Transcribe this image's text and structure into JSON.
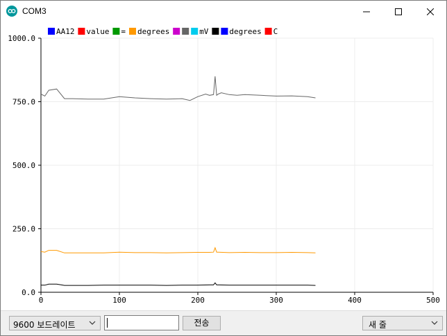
{
  "window": {
    "title": "COM3"
  },
  "plotter": {
    "legend": [
      "AA12",
      "value",
      "=",
      "degrees",
      "",
      "mV",
      "degrees",
      "C"
    ],
    "legend_colors": [
      "#0000ff",
      "#ff0000",
      "#009900",
      "#ff9900",
      "#cc00cc",
      "#666666",
      "#00ccee",
      "#000000",
      "#0000ff",
      "#ff0000"
    ]
  },
  "bottom": {
    "baud": "9600 보드레이트",
    "send_label": "전송",
    "line_ending": "새 줄"
  },
  "chart_data": {
    "type": "line",
    "xlim": [
      0,
      500
    ],
    "ylim": [
      0,
      1000
    ],
    "x_ticks": [
      "0",
      "100",
      "200",
      "300",
      "400",
      "500"
    ],
    "y_ticks": [
      "0.0",
      "250.0",
      "500.0",
      "750.0",
      "1000.0"
    ],
    "grid": true,
    "legend_position": "top",
    "series": [
      {
        "name": "mV",
        "color": "#666666",
        "x": [
          0,
          5,
          10,
          20,
          30,
          40,
          60,
          80,
          100,
          120,
          140,
          160,
          180,
          190,
          200,
          210,
          215,
          220,
          222,
          224,
          226,
          230,
          240,
          250,
          260,
          280,
          300,
          320,
          340,
          350
        ],
        "y": [
          780,
          772,
          795,
          800,
          762,
          762,
          760,
          760,
          770,
          765,
          762,
          760,
          762,
          755,
          770,
          780,
          775,
          778,
          850,
          775,
          780,
          785,
          778,
          775,
          778,
          775,
          772,
          773,
          770,
          765
        ]
      },
      {
        "name": "degrees",
        "color": "#ff9900",
        "x": [
          0,
          5,
          10,
          20,
          30,
          40,
          60,
          80,
          100,
          120,
          140,
          160,
          180,
          200,
          215,
          220,
          222,
          224,
          226,
          240,
          260,
          280,
          300,
          320,
          340,
          350
        ],
        "y": [
          160,
          158,
          165,
          165,
          155,
          155,
          155,
          155,
          158,
          156,
          156,
          155,
          156,
          157,
          157,
          158,
          175,
          158,
          158,
          156,
          157,
          156,
          156,
          157,
          156,
          155
        ]
      },
      {
        "name": "C",
        "color": "#000000",
        "x": [
          0,
          5,
          10,
          20,
          30,
          40,
          60,
          80,
          100,
          120,
          140,
          160,
          180,
          200,
          215,
          220,
          222,
          224,
          226,
          240,
          260,
          280,
          300,
          320,
          340,
          350
        ],
        "y": [
          28,
          28,
          32,
          32,
          27,
          27,
          27,
          28,
          28,
          28,
          28,
          27,
          28,
          28,
          29,
          29,
          37,
          29,
          29,
          28,
          28,
          28,
          28,
          28,
          28,
          27
        ]
      }
    ]
  }
}
